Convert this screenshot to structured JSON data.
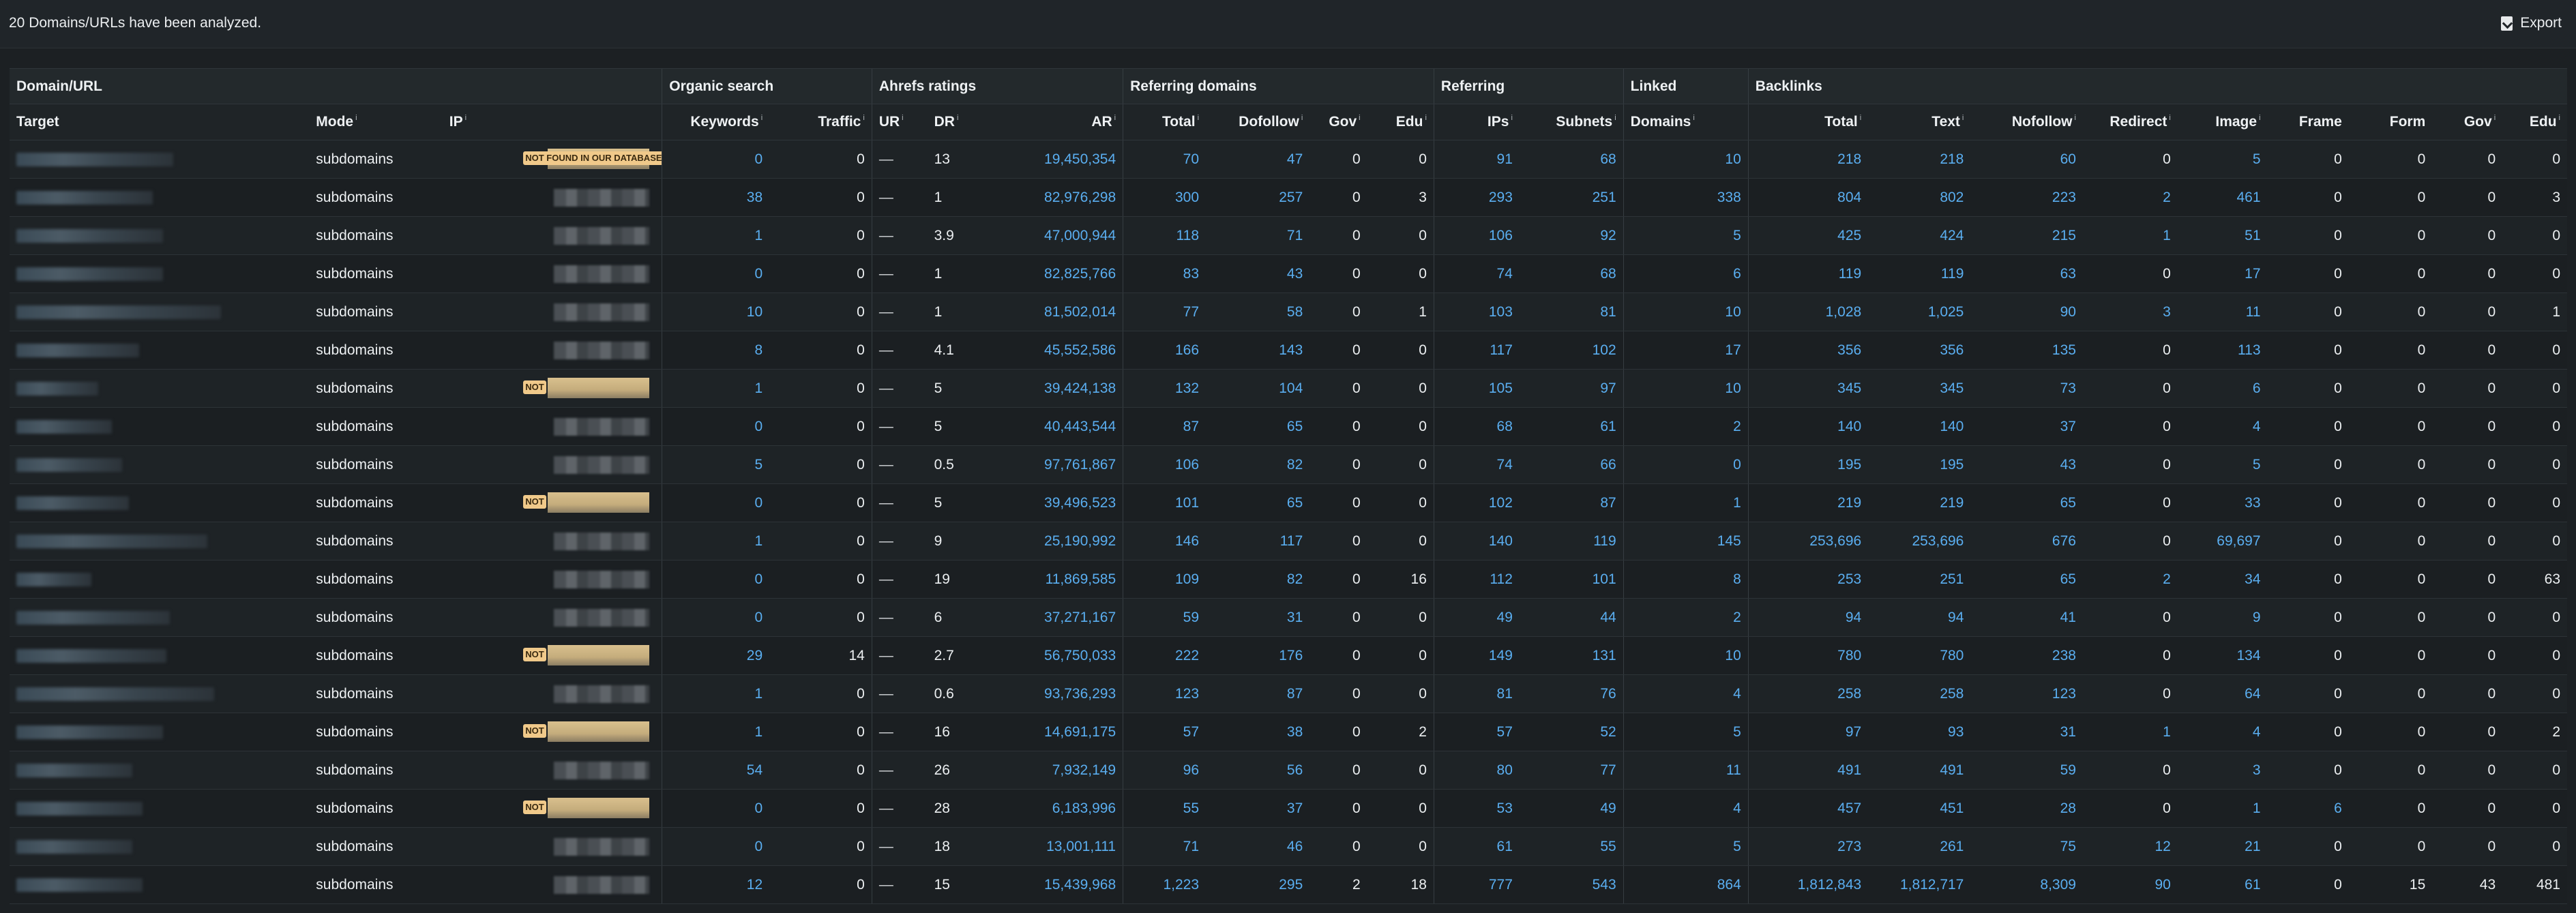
{
  "header": {
    "message": "20 Domains/URLs have been analyzed.",
    "export_label": "Export"
  },
  "groups": [
    "Domain/URL",
    "Organic search",
    "Ahrefs ratings",
    "Referring domains",
    "Referring",
    "Linked",
    "Backlinks"
  ],
  "columns": {
    "target": "Target",
    "mode": "Mode",
    "ip": "IP",
    "keywords": "Keywords",
    "traffic": "Traffic",
    "ur": "UR",
    "dr": "DR",
    "ar": "AR",
    "rd_total": "Total",
    "rd_dofollow": "Dofollow",
    "rd_gov": "Gov",
    "rd_edu": "Edu",
    "ips": "IPs",
    "subnets": "Subnets",
    "linked_domains": "Domains",
    "bl_total": "Total",
    "bl_text": "Text",
    "bl_nofollow": "Nofollow",
    "bl_redirect": "Redirect",
    "bl_image": "Image",
    "bl_frame": "Frame",
    "bl_form": "Form",
    "bl_gov": "Gov",
    "bl_edu": "Edu"
  },
  "info_marker": "i",
  "ip_badge_labels": {
    "full": "NOT FOUND IN OUR DATABASE",
    "short": "NOT"
  },
  "rows": [
    {
      "mode": "subdomains",
      "ip": "full",
      "keywords": "0",
      "traffic": "0",
      "ur": "—",
      "dr": "13",
      "ar": "19,450,354",
      "rd_total": "70",
      "rd_dofollow": "47",
      "rd_gov": "0",
      "rd_edu": "0",
      "ips": "91",
      "subnets": "68",
      "linked": "10",
      "bl_total": "218",
      "bl_text": "218",
      "bl_nofollow": "60",
      "bl_redirect": "0",
      "bl_image": "5",
      "bl_frame": "0",
      "bl_form": "0",
      "bl_gov": "0",
      "bl_edu": "0"
    },
    {
      "mode": "subdomains",
      "ip": "blur",
      "keywords": "38",
      "traffic": "0",
      "ur": "—",
      "dr": "1",
      "ar": "82,976,298",
      "rd_total": "300",
      "rd_dofollow": "257",
      "rd_gov": "0",
      "rd_edu": "3",
      "ips": "293",
      "subnets": "251",
      "linked": "338",
      "bl_total": "804",
      "bl_text": "802",
      "bl_nofollow": "223",
      "bl_redirect": "2",
      "bl_image": "461",
      "bl_frame": "0",
      "bl_form": "0",
      "bl_gov": "0",
      "bl_edu": "3"
    },
    {
      "mode": "subdomains",
      "ip": "blur",
      "keywords": "1",
      "traffic": "0",
      "ur": "—",
      "dr": "3.9",
      "ar": "47,000,944",
      "rd_total": "118",
      "rd_dofollow": "71",
      "rd_gov": "0",
      "rd_edu": "0",
      "ips": "106",
      "subnets": "92",
      "linked": "5",
      "bl_total": "425",
      "bl_text": "424",
      "bl_nofollow": "215",
      "bl_redirect": "1",
      "bl_image": "51",
      "bl_frame": "0",
      "bl_form": "0",
      "bl_gov": "0",
      "bl_edu": "0"
    },
    {
      "mode": "subdomains",
      "ip": "blur",
      "keywords": "0",
      "traffic": "0",
      "ur": "—",
      "dr": "1",
      "ar": "82,825,766",
      "rd_total": "83",
      "rd_dofollow": "43",
      "rd_gov": "0",
      "rd_edu": "0",
      "ips": "74",
      "subnets": "68",
      "linked": "6",
      "bl_total": "119",
      "bl_text": "119",
      "bl_nofollow": "63",
      "bl_redirect": "0",
      "bl_image": "17",
      "bl_frame": "0",
      "bl_form": "0",
      "bl_gov": "0",
      "bl_edu": "0"
    },
    {
      "mode": "subdomains",
      "ip": "blur",
      "keywords": "10",
      "traffic": "0",
      "ur": "—",
      "dr": "1",
      "ar": "81,502,014",
      "rd_total": "77",
      "rd_dofollow": "58",
      "rd_gov": "0",
      "rd_edu": "1",
      "ips": "103",
      "subnets": "81",
      "linked": "10",
      "bl_total": "1,028",
      "bl_text": "1,025",
      "bl_nofollow": "90",
      "bl_redirect": "3",
      "bl_image": "11",
      "bl_frame": "0",
      "bl_form": "0",
      "bl_gov": "0",
      "bl_edu": "1"
    },
    {
      "mode": "subdomains",
      "ip": "blur",
      "keywords": "8",
      "traffic": "0",
      "ur": "—",
      "dr": "4.1",
      "ar": "45,552,586",
      "rd_total": "166",
      "rd_dofollow": "143",
      "rd_gov": "0",
      "rd_edu": "0",
      "ips": "117",
      "subnets": "102",
      "linked": "17",
      "bl_total": "356",
      "bl_text": "356",
      "bl_nofollow": "135",
      "bl_redirect": "0",
      "bl_image": "113",
      "bl_frame": "0",
      "bl_form": "0",
      "bl_gov": "0",
      "bl_edu": "0"
    },
    {
      "mode": "subdomains",
      "ip": "short",
      "keywords": "1",
      "traffic": "0",
      "ur": "—",
      "dr": "5",
      "ar": "39,424,138",
      "rd_total": "132",
      "rd_dofollow": "104",
      "rd_gov": "0",
      "rd_edu": "0",
      "ips": "105",
      "subnets": "97",
      "linked": "10",
      "bl_total": "345",
      "bl_text": "345",
      "bl_nofollow": "73",
      "bl_redirect": "0",
      "bl_image": "6",
      "bl_frame": "0",
      "bl_form": "0",
      "bl_gov": "0",
      "bl_edu": "0"
    },
    {
      "mode": "subdomains",
      "ip": "blur",
      "keywords": "0",
      "traffic": "0",
      "ur": "—",
      "dr": "5",
      "ar": "40,443,544",
      "rd_total": "87",
      "rd_dofollow": "65",
      "rd_gov": "0",
      "rd_edu": "0",
      "ips": "68",
      "subnets": "61",
      "linked": "2",
      "bl_total": "140",
      "bl_text": "140",
      "bl_nofollow": "37",
      "bl_redirect": "0",
      "bl_image": "4",
      "bl_frame": "0",
      "bl_form": "0",
      "bl_gov": "0",
      "bl_edu": "0"
    },
    {
      "mode": "subdomains",
      "ip": "blur",
      "keywords": "5",
      "traffic": "0",
      "ur": "—",
      "dr": "0.5",
      "ar": "97,761,867",
      "rd_total": "106",
      "rd_dofollow": "82",
      "rd_gov": "0",
      "rd_edu": "0",
      "ips": "74",
      "subnets": "66",
      "linked": "0",
      "bl_total": "195",
      "bl_text": "195",
      "bl_nofollow": "43",
      "bl_redirect": "0",
      "bl_image": "5",
      "bl_frame": "0",
      "bl_form": "0",
      "bl_gov": "0",
      "bl_edu": "0"
    },
    {
      "mode": "subdomains",
      "ip": "short",
      "keywords": "0",
      "traffic": "0",
      "ur": "—",
      "dr": "5",
      "ar": "39,496,523",
      "rd_total": "101",
      "rd_dofollow": "65",
      "rd_gov": "0",
      "rd_edu": "0",
      "ips": "102",
      "subnets": "87",
      "linked": "1",
      "bl_total": "219",
      "bl_text": "219",
      "bl_nofollow": "65",
      "bl_redirect": "0",
      "bl_image": "33",
      "bl_frame": "0",
      "bl_form": "0",
      "bl_gov": "0",
      "bl_edu": "0"
    },
    {
      "mode": "subdomains",
      "ip": "blur",
      "keywords": "1",
      "traffic": "0",
      "ur": "—",
      "dr": "9",
      "ar": "25,190,992",
      "rd_total": "146",
      "rd_dofollow": "117",
      "rd_gov": "0",
      "rd_edu": "0",
      "ips": "140",
      "subnets": "119",
      "linked": "145",
      "bl_total": "253,696",
      "bl_text": "253,696",
      "bl_nofollow": "676",
      "bl_redirect": "0",
      "bl_image": "69,697",
      "bl_frame": "0",
      "bl_form": "0",
      "bl_gov": "0",
      "bl_edu": "0"
    },
    {
      "mode": "subdomains",
      "ip": "blur",
      "keywords": "0",
      "traffic": "0",
      "ur": "—",
      "dr": "19",
      "ar": "11,869,585",
      "rd_total": "109",
      "rd_dofollow": "82",
      "rd_gov": "0",
      "rd_edu": "16",
      "ips": "112",
      "subnets": "101",
      "linked": "8",
      "bl_total": "253",
      "bl_text": "251",
      "bl_nofollow": "65",
      "bl_redirect": "2",
      "bl_image": "34",
      "bl_frame": "0",
      "bl_form": "0",
      "bl_gov": "0",
      "bl_edu": "63"
    },
    {
      "mode": "subdomains",
      "ip": "blur",
      "keywords": "0",
      "traffic": "0",
      "ur": "—",
      "dr": "6",
      "ar": "37,271,167",
      "rd_total": "59",
      "rd_dofollow": "31",
      "rd_gov": "0",
      "rd_edu": "0",
      "ips": "49",
      "subnets": "44",
      "linked": "2",
      "bl_total": "94",
      "bl_text": "94",
      "bl_nofollow": "41",
      "bl_redirect": "0",
      "bl_image": "9",
      "bl_frame": "0",
      "bl_form": "0",
      "bl_gov": "0",
      "bl_edu": "0"
    },
    {
      "mode": "subdomains",
      "ip": "short",
      "keywords": "29",
      "traffic": "14",
      "ur": "—",
      "dr": "2.7",
      "ar": "56,750,033",
      "rd_total": "222",
      "rd_dofollow": "176",
      "rd_gov": "0",
      "rd_edu": "0",
      "ips": "149",
      "subnets": "131",
      "linked": "10",
      "bl_total": "780",
      "bl_text": "780",
      "bl_nofollow": "238",
      "bl_redirect": "0",
      "bl_image": "134",
      "bl_frame": "0",
      "bl_form": "0",
      "bl_gov": "0",
      "bl_edu": "0"
    },
    {
      "mode": "subdomains",
      "ip": "blur",
      "keywords": "1",
      "traffic": "0",
      "ur": "—",
      "dr": "0.6",
      "ar": "93,736,293",
      "rd_total": "123",
      "rd_dofollow": "87",
      "rd_gov": "0",
      "rd_edu": "0",
      "ips": "81",
      "subnets": "76",
      "linked": "4",
      "bl_total": "258",
      "bl_text": "258",
      "bl_nofollow": "123",
      "bl_redirect": "0",
      "bl_image": "64",
      "bl_frame": "0",
      "bl_form": "0",
      "bl_gov": "0",
      "bl_edu": "0"
    },
    {
      "mode": "subdomains",
      "ip": "short",
      "keywords": "1",
      "traffic": "0",
      "ur": "—",
      "dr": "16",
      "ar": "14,691,175",
      "rd_total": "57",
      "rd_dofollow": "38",
      "rd_gov": "0",
      "rd_edu": "2",
      "ips": "57",
      "subnets": "52",
      "linked": "5",
      "bl_total": "97",
      "bl_text": "93",
      "bl_nofollow": "31",
      "bl_redirect": "1",
      "bl_image": "4",
      "bl_frame": "0",
      "bl_form": "0",
      "bl_gov": "0",
      "bl_edu": "2"
    },
    {
      "mode": "subdomains",
      "ip": "blur",
      "keywords": "54",
      "traffic": "0",
      "ur": "—",
      "dr": "26",
      "ar": "7,932,149",
      "rd_total": "96",
      "rd_dofollow": "56",
      "rd_gov": "0",
      "rd_edu": "0",
      "ips": "80",
      "subnets": "77",
      "linked": "11",
      "bl_total": "491",
      "bl_text": "491",
      "bl_nofollow": "59",
      "bl_redirect": "0",
      "bl_image": "3",
      "bl_frame": "0",
      "bl_form": "0",
      "bl_gov": "0",
      "bl_edu": "0"
    },
    {
      "mode": "subdomains",
      "ip": "short",
      "keywords": "0",
      "traffic": "0",
      "ur": "—",
      "dr": "28",
      "ar": "6,183,996",
      "rd_total": "55",
      "rd_dofollow": "37",
      "rd_gov": "0",
      "rd_edu": "0",
      "ips": "53",
      "subnets": "49",
      "linked": "4",
      "bl_total": "457",
      "bl_text": "451",
      "bl_nofollow": "28",
      "bl_redirect": "0",
      "bl_image": "1",
      "bl_frame": "6",
      "bl_form": "0",
      "bl_gov": "0",
      "bl_edu": "0"
    },
    {
      "mode": "subdomains",
      "ip": "blur",
      "keywords": "0",
      "traffic": "0",
      "ur": "—",
      "dr": "18",
      "ar": "13,001,111",
      "rd_total": "71",
      "rd_dofollow": "46",
      "rd_gov": "0",
      "rd_edu": "0",
      "ips": "61",
      "subnets": "55",
      "linked": "5",
      "bl_total": "273",
      "bl_text": "261",
      "bl_nofollow": "75",
      "bl_redirect": "12",
      "bl_image": "21",
      "bl_frame": "0",
      "bl_form": "0",
      "bl_gov": "0",
      "bl_edu": "0"
    },
    {
      "mode": "subdomains",
      "ip": "blur",
      "keywords": "12",
      "traffic": "0",
      "ur": "—",
      "dr": "15",
      "ar": "15,439,968",
      "rd_total": "1,223",
      "rd_dofollow": "295",
      "rd_gov": "2",
      "rd_edu": "18",
      "ips": "777",
      "subnets": "543",
      "linked": "864",
      "bl_total": "1,812,843",
      "bl_text": "1,812,717",
      "bl_nofollow": "8,309",
      "bl_redirect": "90",
      "bl_image": "61",
      "bl_frame": "0",
      "bl_form": "15",
      "bl_gov": "43",
      "bl_edu": "481"
    }
  ]
}
